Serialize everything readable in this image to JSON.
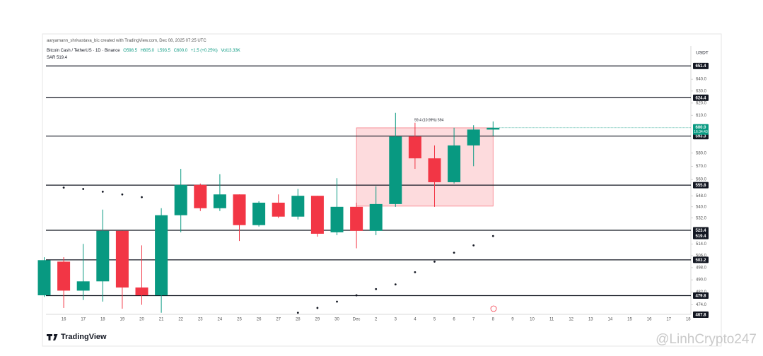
{
  "chart_data": {
    "type": "candlestick",
    "attribution": "aaryamann_shrivastava_bic created with TradingView.com, Dec 08, 2025 07:25 UTC",
    "symbol": "Bitcoin Cash / TetherUS · 1D · Binance",
    "ohlc_text": [
      "O598.5",
      "H605.0",
      "L593.5",
      "C600.0"
    ],
    "change": "+1.5 (+0.25%)",
    "volume": "Vol13.33K",
    "indicator": "SAR  519.4",
    "currency": "USDT",
    "brand": "TradingView",
    "watermark": "@LinhCrypto247",
    "log_scale": true,
    "grid": false,
    "up_color": "#089981",
    "down_color": "#f23645",
    "categories": [
      null,
      "16",
      "17",
      "18",
      "19",
      "20",
      "21",
      "22",
      "23",
      "24",
      "25",
      "26",
      "27",
      "28",
      "29",
      "30",
      "Dec",
      "2",
      "3",
      "4",
      "5",
      "6",
      "7",
      "8",
      "9",
      "10",
      "11",
      "12",
      "13",
      "14",
      "15",
      "16",
      "17",
      "18"
    ],
    "open": [
      480,
      502,
      483,
      489,
      523,
      485,
      480,
      534,
      556,
      539,
      549,
      527,
      543,
      533,
      548,
      522,
      540,
      523,
      542,
      593,
      576,
      558,
      586,
      598.5,
      null,
      null,
      null,
      null,
      null,
      null,
      null,
      null,
      null,
      null
    ],
    "high": [
      505,
      505,
      514,
      538,
      523,
      513,
      539,
      568,
      557,
      564,
      549,
      544,
      549,
      553,
      548,
      561,
      543,
      555,
      612,
      604,
      586,
      600,
      602,
      605,
      null,
      null,
      null,
      null,
      null,
      null,
      null,
      null,
      null,
      null
    ],
    "low": [
      479,
      472,
      477,
      476,
      471.5,
      474,
      469,
      522,
      537,
      537,
      516,
      526,
      532,
      531,
      519,
      520,
      511,
      520,
      540,
      568,
      540,
      557,
      570,
      593.5,
      null,
      null,
      null,
      null,
      null,
      null,
      null,
      null,
      null,
      null
    ],
    "close": [
      503,
      483,
      489,
      523,
      485,
      480,
      534,
      556,
      539,
      549,
      527,
      543,
      533,
      548,
      521,
      540,
      523,
      542,
      593,
      576,
      558,
      586,
      598.5,
      600,
      null,
      null,
      null,
      null,
      null,
      null,
      null,
      null,
      null,
      null
    ],
    "sar": {
      "name": "SAR",
      "color": "#131722",
      "values": [
        null,
        554,
        553,
        551,
        549,
        547,
        null,
        null,
        null,
        null,
        null,
        null,
        null,
        469,
        472,
        476,
        480,
        484,
        487,
        495,
        502,
        508,
        513,
        519.4,
        null,
        null,
        null,
        null,
        null,
        null,
        null,
        null,
        null,
        null
      ]
    },
    "ylim": [
      468,
      669
    ],
    "yticks": [
      {
        "value": 640,
        "label": "640.0"
      },
      {
        "value": 630,
        "label": "630.0"
      },
      {
        "value": 620,
        "label": "620.0"
      },
      {
        "value": 610,
        "label": "610.0"
      },
      {
        "value": 580,
        "label": "580.0"
      },
      {
        "value": 570,
        "label": "570.0"
      },
      {
        "value": 560,
        "label": "560.0"
      },
      {
        "value": 548,
        "label": "548.0"
      },
      {
        "value": 540,
        "label": "540.0"
      },
      {
        "value": 532,
        "label": "532.0"
      },
      {
        "value": 514,
        "label": "514.0"
      },
      {
        "value": 506,
        "label": "506.0"
      },
      {
        "value": 498,
        "label": "498.0"
      },
      {
        "value": 490,
        "label": "490.0"
      },
      {
        "value": 482,
        "label": "482.0"
      },
      {
        "value": 474,
        "label": "474.0"
      }
    ],
    "levels": [
      651.4,
      624.4,
      593.3,
      555.8,
      523.4,
      503.2,
      479.8
    ],
    "sar_label": 519.4,
    "low_label": 467.8,
    "current_price": {
      "value": 600,
      "label": "600.0"
    },
    "countdown": "16:34:43",
    "range_box": {
      "start": 16,
      "end": 23,
      "top": 599.9,
      "bottom": 540.5,
      "label": "59.4 (10.99%) 594"
    }
  }
}
